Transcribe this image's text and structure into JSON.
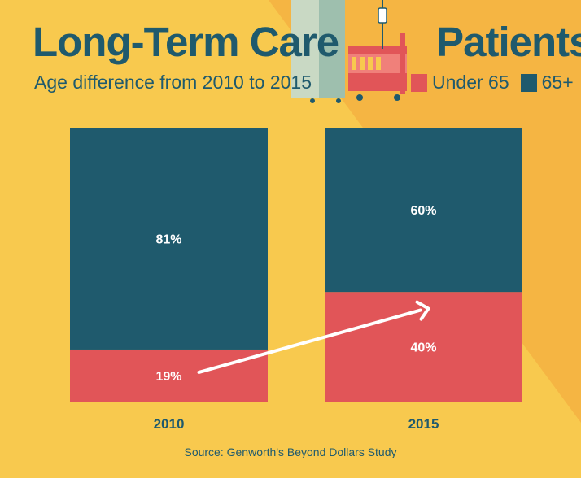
{
  "header": {
    "title_left": "Long-Term Care",
    "title_right": "Patients",
    "subtitle": "Age difference from 2010 to 2015"
  },
  "legend": {
    "items": [
      {
        "label": "Under 65",
        "color": "#e15558"
      },
      {
        "label": "65+",
        "color": "#1f5a6d"
      }
    ]
  },
  "chart_data": {
    "type": "bar",
    "stacked": true,
    "percent": true,
    "title": "Long-Term Care Patients",
    "subtitle": "Age difference from 2010 to 2015",
    "categories": [
      "2010",
      "2015"
    ],
    "series": [
      {
        "name": "Under 65",
        "values": [
          19,
          40
        ],
        "labels": [
          "19%",
          "40%"
        ],
        "color": "#e15558"
      },
      {
        "name": "65+",
        "values": [
          81,
          60
        ],
        "labels": [
          "81%",
          "60%"
        ],
        "color": "#1f5a6d"
      }
    ],
    "ylim": [
      0,
      100
    ],
    "grid": false,
    "legend_position": "top-right",
    "annotation": "arrow from 2010 under-65 bar to 2015 under-65 bar"
  },
  "footer": {
    "source": "Source: Genworth's Beyond Dollars Study"
  },
  "colors": {
    "background": "#f8c94e",
    "background_shade": "#f5b543",
    "text": "#1f5a6d"
  }
}
